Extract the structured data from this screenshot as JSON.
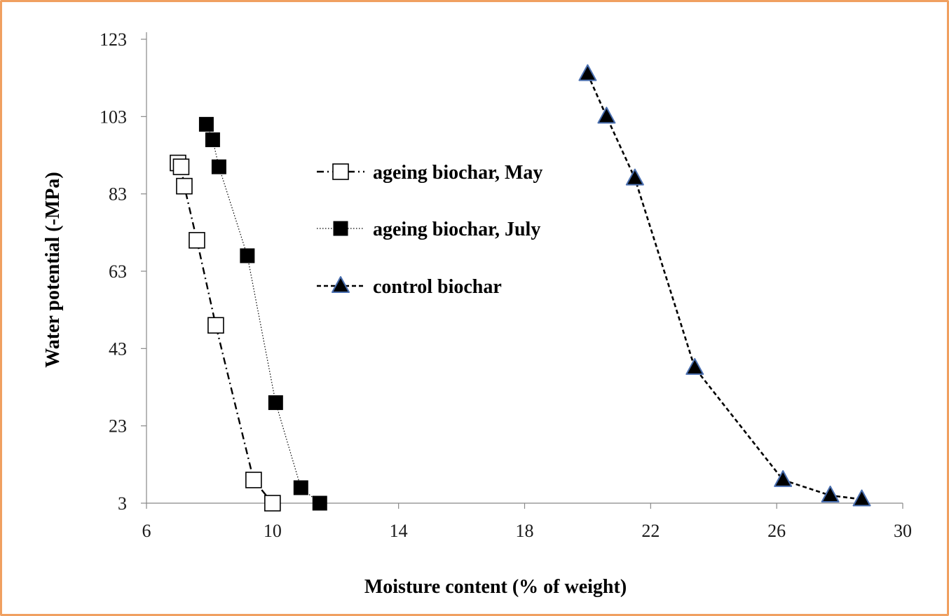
{
  "chart_data": {
    "type": "scatter",
    "xlabel": "Moisture content (% of weight)",
    "ylabel": "Water potential (-MPa)",
    "xlim": [
      6,
      30
    ],
    "ylim": [
      3,
      123
    ],
    "xticks": [
      6,
      10,
      14,
      18,
      22,
      26,
      30
    ],
    "yticks": [
      3,
      23,
      43,
      63,
      83,
      103,
      123
    ],
    "grid": false,
    "legend_position": "center-left",
    "series": [
      {
        "name": "ageing biochar, May",
        "marker": "square-open",
        "line_style": "dash-dot",
        "color": "#000000",
        "x": [
          7.0,
          7.1,
          7.2,
          7.6,
          8.2,
          9.4,
          10.0
        ],
        "y": [
          91,
          90,
          85,
          71,
          49,
          9,
          3
        ]
      },
      {
        "name": "ageing biochar, July",
        "marker": "square-filled",
        "line_style": "dotted",
        "color": "#000000",
        "x": [
          7.9,
          8.1,
          8.3,
          9.2,
          10.1,
          10.9,
          11.5
        ],
        "y": [
          101,
          97,
          90,
          67,
          29,
          7,
          3
        ]
      },
      {
        "name": "control biochar",
        "marker": "triangle-filled",
        "line_style": "dashed",
        "color": "#000000",
        "marker_edge": "#4a6fb0",
        "x": [
          20.0,
          20.6,
          21.5,
          23.4,
          26.2,
          27.7,
          28.7
        ],
        "y": [
          114,
          103,
          87,
          38,
          9,
          5,
          4
        ]
      }
    ]
  }
}
